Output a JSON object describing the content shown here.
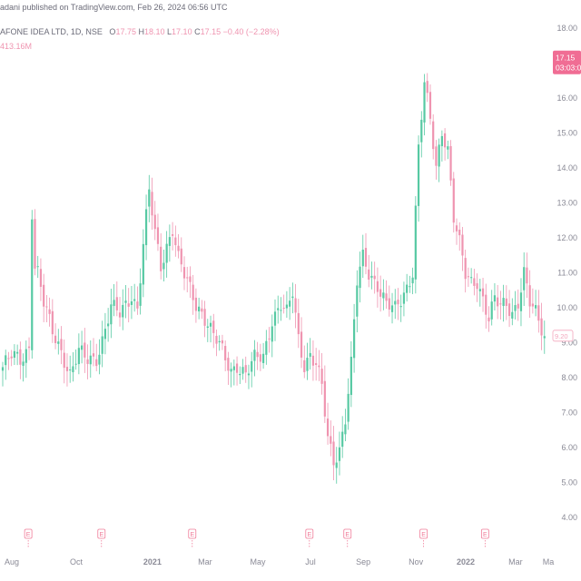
{
  "header": {
    "publisher_line": "adani published on TradingView.com, Feb 26, 2024 06:56 UTC",
    "symbol": "AFONE IDEA LTD, 1D, NSE",
    "o_label": "O",
    "o_value": "17.75",
    "h_label": "H",
    "h_value": "18.10",
    "l_label": "L",
    "l_value": "17.10",
    "c_label": "C",
    "c_value": "17.15",
    "change": "−0.40 (−2.28%)",
    "volume": "413.16M"
  },
  "price_tag": {
    "price": "17.15",
    "countdown": "03:03:00"
  },
  "last_tag": {
    "price": "9.20"
  },
  "colors": {
    "up": "#57c9a3",
    "down": "#ef94b0",
    "tag": "#f06d94",
    "last_tag": "#f3a6bd",
    "axis_text": "#8a8a96",
    "event": "#f07c99"
  },
  "event_marker_label": "E",
  "chart_data": {
    "type": "candlestick",
    "ylim": [
      4.0,
      18.0
    ],
    "y_ticks": [
      "18.00",
      "16.00",
      "15.00",
      "14.00",
      "13.00",
      "12.00",
      "11.00",
      "10.00",
      "9.00",
      "8.00",
      "7.00",
      "6.00",
      "5.00",
      "4.00"
    ],
    "y_tick_values": [
      18,
      16,
      15,
      14,
      13,
      12,
      11,
      10,
      9,
      8,
      7,
      6,
      5,
      4
    ],
    "x_labels": [
      "Aug",
      "Oct",
      "2021",
      "Mar",
      "May",
      "Jul",
      "Sep",
      "Nov",
      "2022",
      "Mar",
      "Ma"
    ],
    "x_label_index": [
      0,
      22,
      48,
      66,
      84,
      102,
      120,
      138,
      155,
      172,
      188
    ],
    "event_index": [
      5,
      30,
      61,
      101,
      114,
      140,
      161
    ],
    "anchors": [
      [
        0,
        8.3
      ],
      [
        3,
        8.6
      ],
      [
        6,
        8.5
      ],
      [
        9,
        8.9
      ],
      [
        10,
        12.8
      ],
      [
        11,
        11.2
      ],
      [
        12,
        11.0
      ],
      [
        14,
        10.1
      ],
      [
        17,
        9.3
      ],
      [
        20,
        8.8
      ],
      [
        23,
        8.1
      ],
      [
        26,
        8.7
      ],
      [
        29,
        8.5
      ],
      [
        32,
        8.6
      ],
      [
        34,
        9.1
      ],
      [
        37,
        10.0
      ],
      [
        40,
        9.8
      ],
      [
        44,
        10.4
      ],
      [
        46,
        10.0
      ],
      [
        48,
        11.8
      ],
      [
        50,
        13.3
      ],
      [
        52,
        12.1
      ],
      [
        54,
        11.2
      ],
      [
        56,
        11.8
      ],
      [
        58,
        12.3
      ],
      [
        60,
        11.4
      ],
      [
        62,
        10.9
      ],
      [
        64,
        10.5
      ],
      [
        66,
        10.1
      ],
      [
        68,
        9.9
      ],
      [
        70,
        9.6
      ],
      [
        72,
        9.2
      ],
      [
        74,
        8.9
      ],
      [
        76,
        8.5
      ],
      [
        78,
        8.2
      ],
      [
        80,
        8.4
      ],
      [
        83,
        8.1
      ],
      [
        86,
        8.5
      ],
      [
        89,
        8.6
      ],
      [
        92,
        9.7
      ],
      [
        95,
        10.1
      ],
      [
        97,
        9.8
      ],
      [
        99,
        10.4
      ],
      [
        101,
        9.1
      ],
      [
        103,
        8.4
      ],
      [
        105,
        8.7
      ],
      [
        107,
        8.4
      ],
      [
        109,
        7.7
      ],
      [
        111,
        6.2
      ],
      [
        113,
        5.6
      ],
      [
        115,
        6.0
      ],
      [
        117,
        6.9
      ],
      [
        119,
        8.4
      ],
      [
        121,
        10.7
      ],
      [
        123,
        11.4
      ],
      [
        125,
        11.0
      ],
      [
        128,
        10.7
      ],
      [
        131,
        10.1
      ],
      [
        134,
        9.9
      ],
      [
        136,
        10.2
      ],
      [
        138,
        10.6
      ],
      [
        140,
        11.1
      ],
      [
        142,
        14.6
      ],
      [
        144,
        16.4
      ],
      [
        146,
        15.3
      ],
      [
        148,
        14.0
      ],
      [
        150,
        15.1
      ],
      [
        152,
        14.6
      ],
      [
        154,
        12.6
      ],
      [
        156,
        11.8
      ],
      [
        158,
        10.9
      ],
      [
        160,
        10.7
      ],
      [
        162,
        10.8
      ],
      [
        164,
        10.3
      ],
      [
        166,
        9.7
      ],
      [
        168,
        10.2
      ],
      [
        170,
        10.0
      ],
      [
        172,
        10.1
      ],
      [
        174,
        9.9
      ],
      [
        176,
        10.2
      ],
      [
        178,
        11.0
      ],
      [
        180,
        10.1
      ],
      [
        182,
        9.8
      ],
      [
        184,
        9.4
      ],
      [
        185,
        9.2
      ]
    ],
    "bar_count": 186
  }
}
